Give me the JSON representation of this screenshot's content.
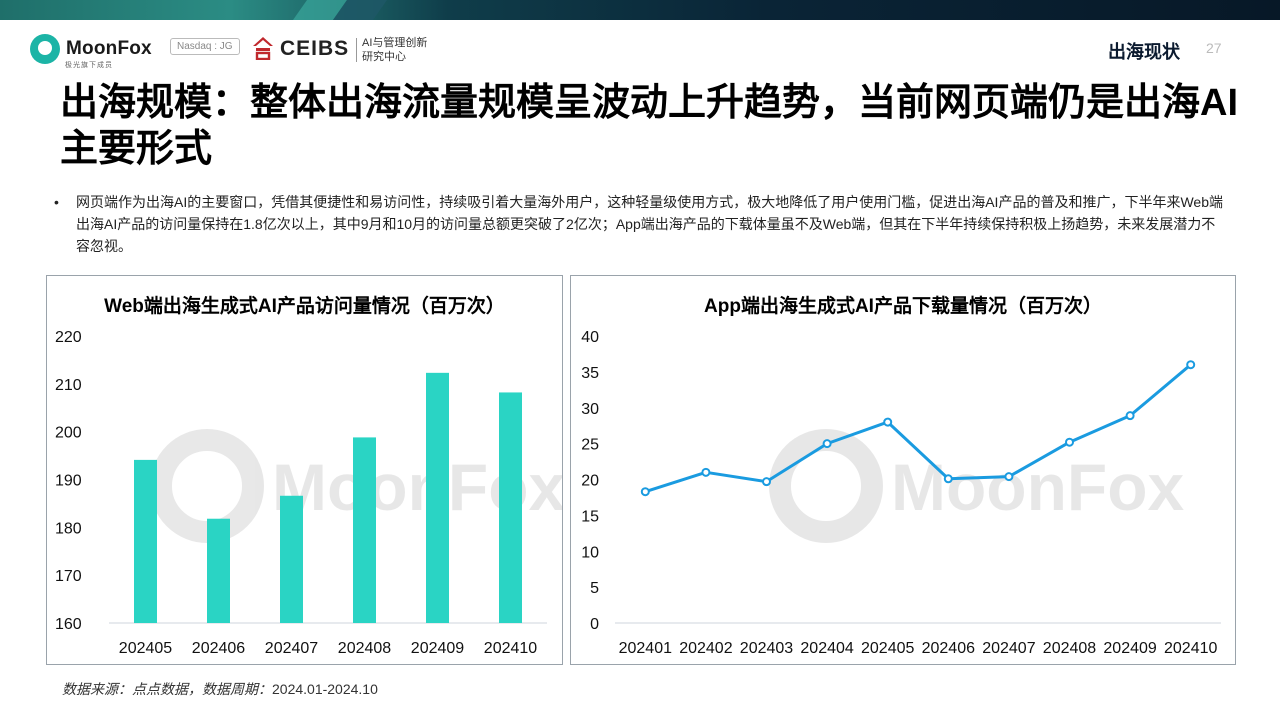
{
  "header": {
    "brand": "MoonFox",
    "brand_sub": "极光旗下成员",
    "exchange": "Nasdaq : JG",
    "partner": "CEIBS",
    "partner_tag_1": "AI与管理创新",
    "partner_tag_2": "研究中心",
    "section": "出海现状",
    "page_number": "27"
  },
  "title": "出海规模：整体出海流量规模呈波动上升趋势，当前网页端仍是出海AI主要形式",
  "bullet": "网页端作为出海AI的主要窗口，凭借其便捷性和易访问性，持续吸引着大量海外用户，这种轻量级使用方式，极大地降低了用户使用门槛，促进出海AI产品的普及和推广，下半年来Web端出海AI产品的访问量保持在1.8亿次以上，其中9月和10月的访问量总额更突破了2亿次；App端出海产品的下载体量虽不及Web端，但其在下半年持续保持积极上扬趋势，未来发展潜力不容忽视。",
  "watermark": "MoonFox",
  "chart_data": [
    {
      "type": "bar",
      "title": "Web端出海生成式AI产品访问量情况（百万次）",
      "categories": [
        "202405",
        "202406",
        "202407",
        "202408",
        "202409",
        "202410"
      ],
      "values": [
        194.1,
        181.8,
        186.6,
        198.8,
        212.3,
        208.2
      ],
      "ylim": [
        160,
        220
      ],
      "yticks": [
        "220",
        "210",
        "200",
        "190",
        "180",
        "170",
        "160"
      ],
      "color": "#2ad4c4"
    },
    {
      "type": "line",
      "title": "App端出海生成式AI产品下载量情况（百万次）",
      "categories": [
        "202401",
        "202402",
        "202403",
        "202404",
        "202405",
        "202406",
        "202407",
        "202408",
        "202409",
        "202410"
      ],
      "values": [
        18.3,
        21.0,
        19.7,
        25.0,
        28.0,
        20.1,
        20.4,
        25.2,
        28.9,
        36.0
      ],
      "ylim": [
        0,
        40
      ],
      "yticks": [
        "40",
        "35",
        "30",
        "25",
        "20",
        "15",
        "10",
        "5",
        "0"
      ],
      "color": "#1a9be0"
    }
  ],
  "source": {
    "label": "数据来源：点点数据，数据周期：",
    "period": "2024.01-2024.10"
  }
}
